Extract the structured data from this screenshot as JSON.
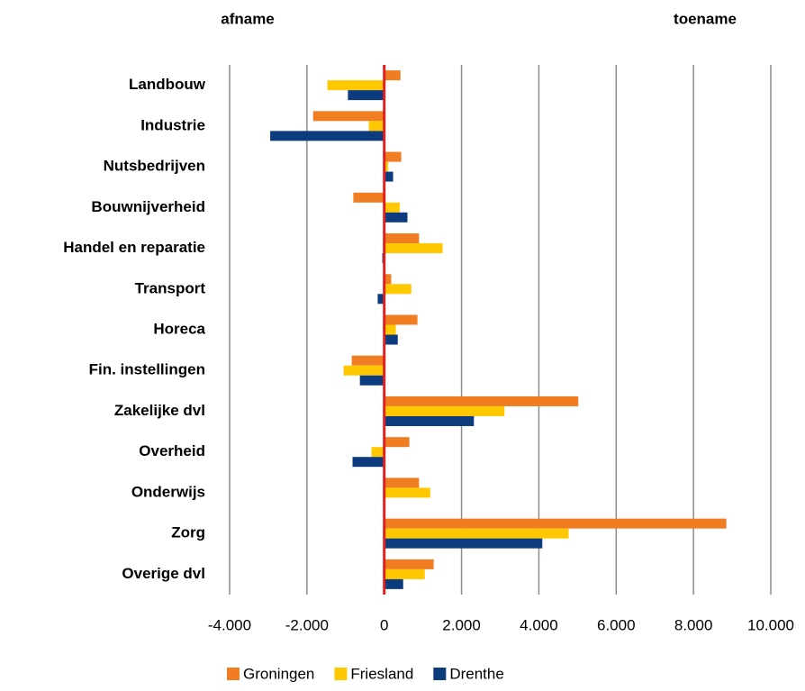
{
  "chart_data": {
    "type": "hbar",
    "annotations": [
      "afname",
      "toename"
    ],
    "categories": [
      "Landbouw",
      "Industrie",
      "Nutsbedrijven",
      "Bouwnijverheid",
      "Handel en reparatie",
      "Transport",
      "Horeca",
      "Fin. instellingen",
      "Zakelijke dvl",
      "Overheid",
      "Onderwijs",
      "Zorg",
      "Overige dvl"
    ],
    "series": [
      {
        "name": "Groningen",
        "color": "#f07d22",
        "values": [
          420,
          -1840,
          440,
          -800,
          900,
          180,
          860,
          -840,
          5020,
          650,
          900,
          8850,
          1280
        ]
      },
      {
        "name": "Friesland",
        "color": "#ffc800",
        "values": [
          -1470,
          -400,
          100,
          400,
          1510,
          700,
          300,
          -1050,
          3110,
          -330,
          1190,
          4770,
          1050
        ]
      },
      {
        "name": "Drenthe",
        "color": "#0d3c7e",
        "values": [
          -940,
          -2950,
          230,
          600,
          -50,
          -170,
          350,
          -630,
          2320,
          -820,
          -30,
          4090,
          490
        ]
      }
    ],
    "xlim": [
      -4000,
      10000
    ],
    "xticks": [
      {
        "value": -4000,
        "label": "-4.000"
      },
      {
        "value": -2000,
        "label": "-2.000"
      },
      0,
      {
        "value": 2000,
        "label": "2.000"
      },
      {
        "value": 4000,
        "label": "4.000"
      },
      {
        "value": 6000,
        "label": "6.000"
      },
      {
        "value": 8000,
        "label": "8.000"
      },
      {
        "value": 10000,
        "label": "10.000"
      }
    ],
    "grid": true,
    "zero_line_color": "#e02020",
    "legend": "bottom"
  }
}
